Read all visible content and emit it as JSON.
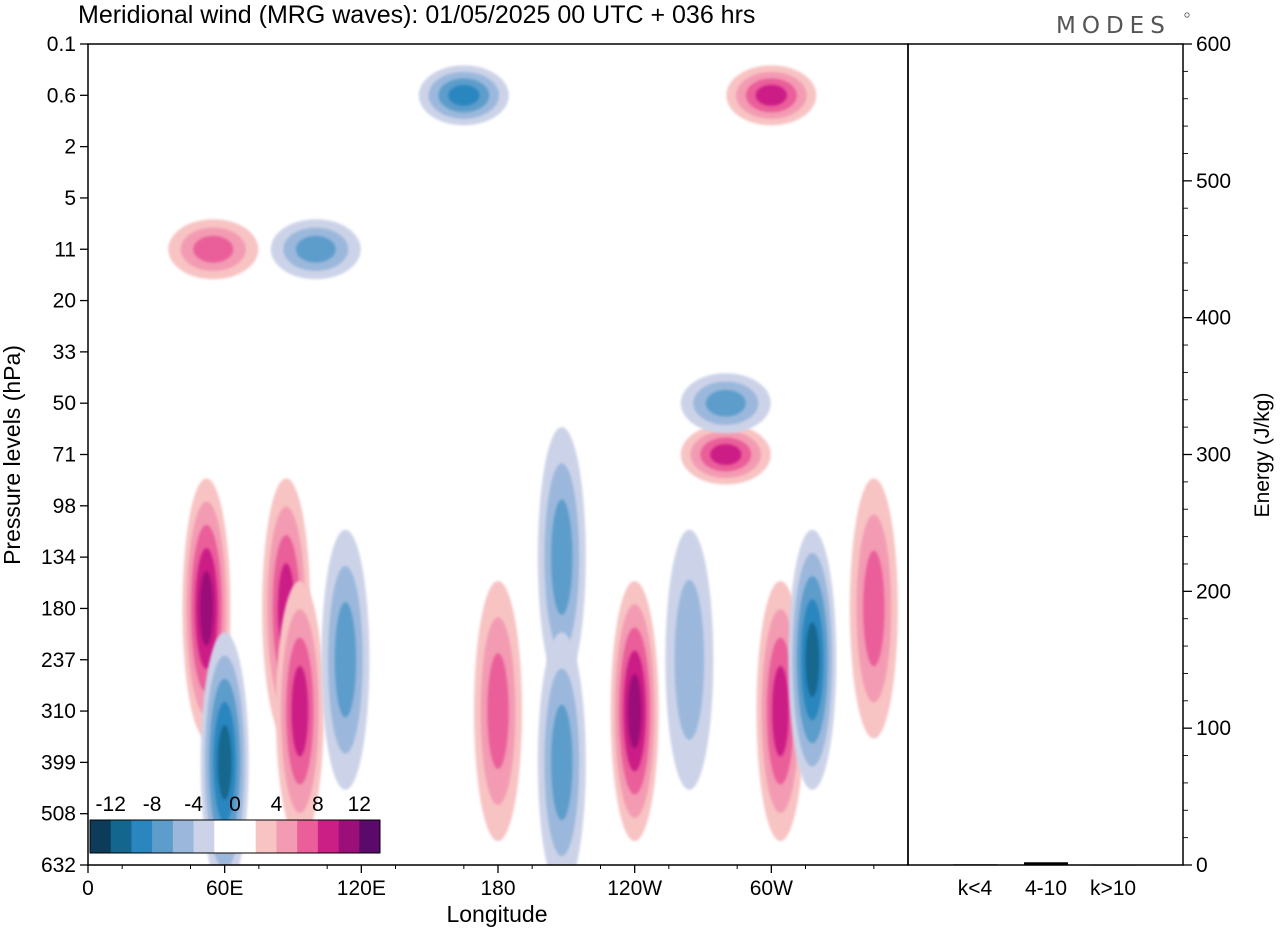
{
  "chart_data": {
    "type": "heatmap",
    "title": "Meridional wind (MRG waves):  01/05/2025  00 UTC  + 036 hrs",
    "logo": "MODES",
    "xlabel": "Longitude",
    "ylabel": "Pressure levels (hPa)",
    "x_ticks": [
      "0",
      "60E",
      "120E",
      "180",
      "120W",
      "60W"
    ],
    "x_range_deg": [
      0,
      360
    ],
    "y_ticks": [
      "0.1",
      "0.6",
      "2",
      "5",
      "11",
      "20",
      "33",
      "50",
      "71",
      "98",
      "134",
      "180",
      "237",
      "310",
      "399",
      "508",
      "632"
    ],
    "colorbar": {
      "labels": [
        "-12",
        "-8",
        "-4",
        "0",
        "4",
        "8",
        "12"
      ],
      "colors": [
        "#0d3b5a",
        "#13678f",
        "#2b86bf",
        "#5d9dcb",
        "#9bb8dc",
        "#ccd3e8",
        "#ffffff",
        "#ffffff",
        "#f8c3c3",
        "#f39bb2",
        "#ea5f9a",
        "#cc1f86",
        "#9b0f78",
        "#5b0a6b"
      ]
    },
    "contours_approx": [
      {
        "lon": 52,
        "level": 180,
        "value": 10
      },
      {
        "lon": 60,
        "level": 399,
        "value": -10
      },
      {
        "lon": 87,
        "level": 180,
        "value": 8
      },
      {
        "lon": 93,
        "level": 310,
        "value": 8
      },
      {
        "lon": 113,
        "level": 237,
        "value": -6
      },
      {
        "lon": 180,
        "level": 310,
        "value": 6
      },
      {
        "lon": 208,
        "level": 134,
        "value": -6
      },
      {
        "lon": 208,
        "level": 399,
        "value": -6
      },
      {
        "lon": 240,
        "level": 310,
        "value": 10
      },
      {
        "lon": 264,
        "level": 237,
        "value": -4
      },
      {
        "lon": 280,
        "level": 71,
        "value": 8
      },
      {
        "lon": 304,
        "level": 310,
        "value": 8
      },
      {
        "lon": 318,
        "level": 237,
        "value": -12
      },
      {
        "lon": 345,
        "level": 180,
        "value": 6
      },
      {
        "lon": 165,
        "level": 0.6,
        "value": -8
      },
      {
        "lon": 100,
        "level": 11,
        "value": -6
      },
      {
        "lon": 55,
        "level": 11,
        "value": 6
      },
      {
        "lon": 300,
        "level": 0.6,
        "value": 8
      },
      {
        "lon": 280,
        "level": 50,
        "value": -6
      }
    ],
    "energy_panel": {
      "ylabel": "Energy (J/kg)",
      "ylim": [
        0,
        600
      ],
      "y_ticks": [
        "0",
        "100",
        "200",
        "300",
        "400",
        "500",
        "600"
      ],
      "categories": [
        "k<4",
        "4-10",
        "k>10"
      ],
      "values": [
        0.5,
        2,
        0.3
      ]
    }
  }
}
